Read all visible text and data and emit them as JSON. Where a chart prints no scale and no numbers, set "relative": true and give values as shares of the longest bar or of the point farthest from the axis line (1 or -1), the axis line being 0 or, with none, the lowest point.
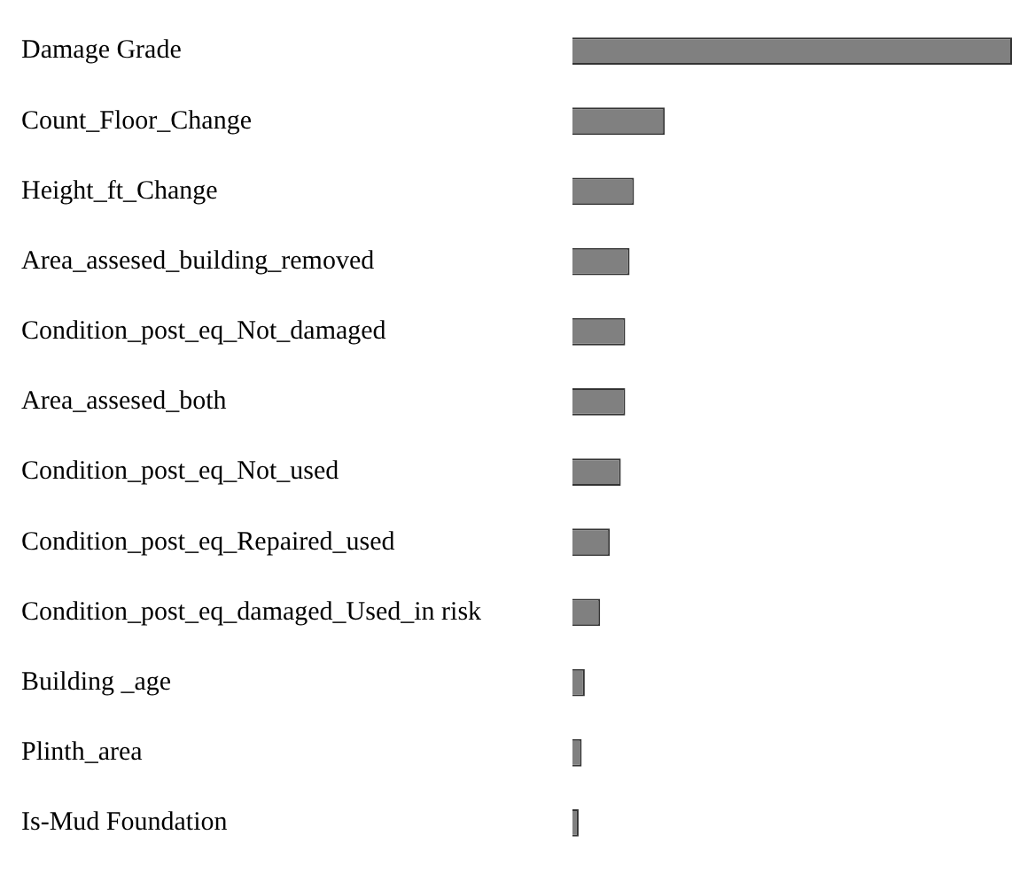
{
  "chart_data": {
    "type": "bar",
    "orientation": "horizontal",
    "relative": true,
    "categories": [
      "Damage Grade",
      "Count_Floor_Change",
      "Height_ft_Change",
      "Area_assesed_building_removed",
      "Condition_post_eq_Not_damaged",
      "Area_assesed_both",
      "Condition_post_eq_Not_used",
      "Condition_post_eq_Repaired_used",
      "Condition_post_eq_damaged_Used_in risk",
      "Building _age",
      "Plinth_area",
      "Is-Mud Foundation"
    ],
    "values": [
      1,
      0.21,
      0.14,
      0.13,
      0.12,
      0.12,
      0.11,
      0.085,
      0.063,
      0.028,
      0.021,
      0.014
    ],
    "color": "#808080"
  }
}
